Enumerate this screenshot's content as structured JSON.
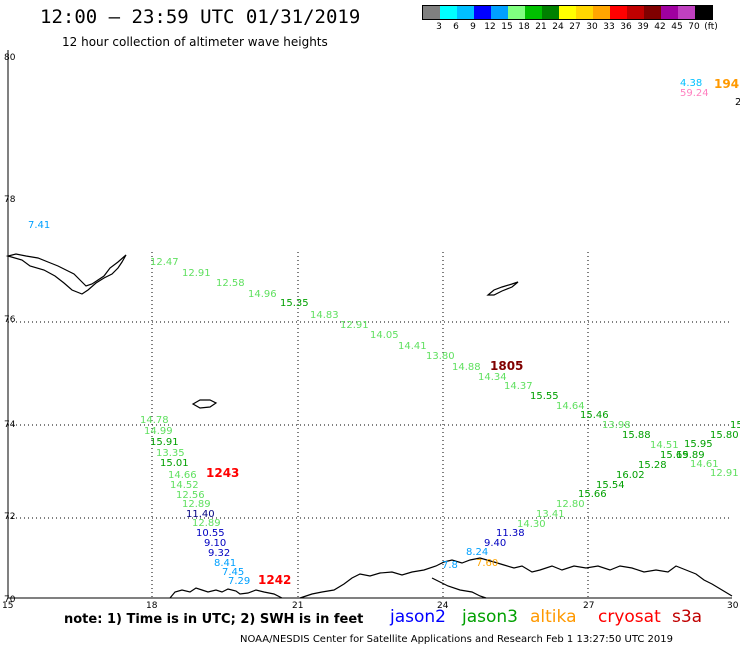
{
  "header": {
    "title": "12:00 – 23:59 UTC 01/31/2019",
    "subtitle": "12 hour collection of altimeter wave heights"
  },
  "color_scale": {
    "colors": [
      "#808080",
      "#00ffff",
      "#00bfff",
      "#0000ff",
      "#00a0ff",
      "#80ff80",
      "#00c000",
      "#008000",
      "#ffff00",
      "#ffd700",
      "#ffa500",
      "#ff0000",
      "#c00000",
      "#800000",
      "#a000a0",
      "#c040c0",
      "#000000"
    ],
    "labels": [
      "3",
      "6",
      "9",
      "12",
      "15",
      "18",
      "21",
      "24",
      "27",
      "30",
      "33",
      "36",
      "39",
      "42",
      "45",
      "70",
      "(ft)"
    ]
  },
  "axes": {
    "lat_labels": [
      "80",
      "78",
      "76",
      "74",
      "72",
      "70"
    ],
    "lon_labels": [
      "15",
      "18",
      "21",
      "24",
      "27",
      "30"
    ]
  },
  "wave_points": [
    {
      "text": "4.38",
      "color": "#00c0ff"
    },
    {
      "text": "59.24",
      "color": "#ff80c0"
    },
    {
      "text": "2",
      "color": "#000000"
    },
    {
      "text": "7.41",
      "color": "#00a0ff"
    },
    {
      "text": "12.47",
      "color": "#60e060"
    },
    {
      "text": "12.91",
      "color": "#60e060"
    },
    {
      "text": "12.58",
      "color": "#60e060"
    },
    {
      "text": "14.96",
      "color": "#60e060"
    },
    {
      "text": "15.35",
      "color": "#00a000"
    },
    {
      "text": "14.83",
      "color": "#60e060"
    },
    {
      "text": "12.91",
      "color": "#60e060"
    },
    {
      "text": "14.05",
      "color": "#60e060"
    },
    {
      "text": "14.41",
      "color": "#60e060"
    },
    {
      "text": "13.80",
      "color": "#60e060"
    },
    {
      "text": "14.88",
      "color": "#60e060"
    },
    {
      "text": "14.34",
      "color": "#60e060"
    },
    {
      "text": "14.37",
      "color": "#60e060"
    },
    {
      "text": "15.55",
      "color": "#00a000"
    },
    {
      "text": "14.64",
      "color": "#60e060"
    },
    {
      "text": "15.46",
      "color": "#00a000"
    },
    {
      "text": "13.98",
      "color": "#60e060"
    },
    {
      "text": "15.88",
      "color": "#00a000"
    },
    {
      "text": "14.51",
      "color": "#60e060"
    },
    {
      "text": "15.95",
      "color": "#00a000"
    },
    {
      "text": "15.69",
      "color": "#00a000"
    },
    {
      "text": "15.89",
      "color": "#00a000"
    },
    {
      "text": "15.28",
      "color": "#00a000"
    },
    {
      "text": "14.61",
      "color": "#60e060"
    },
    {
      "text": "12.91",
      "color": "#60e060"
    },
    {
      "text": "16.02",
      "color": "#00a000"
    },
    {
      "text": "15.54",
      "color": "#00a000"
    },
    {
      "text": "15.66",
      "color": "#00a000"
    },
    {
      "text": "12.80",
      "color": "#60e060"
    },
    {
      "text": "13.41",
      "color": "#60e060"
    },
    {
      "text": "14.30",
      "color": "#60e060"
    },
    {
      "text": "15.80",
      "color": "#00a000"
    },
    {
      "text": "15",
      "color": "#00a000"
    },
    {
      "text": "14.78",
      "color": "#60e060"
    },
    {
      "text": "14.99",
      "color": "#60e060"
    },
    {
      "text": "15.91",
      "color": "#00a000"
    },
    {
      "text": "13.35",
      "color": "#60e060"
    },
    {
      "text": "15.01",
      "color": "#00a000"
    },
    {
      "text": "14.66",
      "color": "#60e060"
    },
    {
      "text": "14.52",
      "color": "#60e060"
    },
    {
      "text": "12.56",
      "color": "#60e060"
    },
    {
      "text": "12.89",
      "color": "#60e060"
    },
    {
      "text": "11.40",
      "color": "#000080"
    },
    {
      "text": "12.89",
      "color": "#60e060"
    },
    {
      "text": "10.55",
      "color": "#0000c0"
    },
    {
      "text": "9.10",
      "color": "#0000c0"
    },
    {
      "text": "9.32",
      "color": "#0000c0"
    },
    {
      "text": "8.41",
      "color": "#00a0ff"
    },
    {
      "text": "7.45",
      "color": "#00a0ff"
    },
    {
      "text": "7.29",
      "color": "#00a0ff"
    },
    {
      "text": "11.38",
      "color": "#0000c0"
    },
    {
      "text": "9.40",
      "color": "#0000c0"
    },
    {
      "text": "8.24",
      "color": "#00a0ff"
    },
    {
      "text": "7.8",
      "color": "#00a0ff"
    },
    {
      "text": "7.60",
      "color": "#ffa500"
    }
  ],
  "time_labels": [
    {
      "text": "194",
      "color": "#ff9900"
    },
    {
      "text": "1805",
      "color": "#800000"
    },
    {
      "text": "1243",
      "color": "#ff0000"
    },
    {
      "text": "1242",
      "color": "#ff0000"
    }
  ],
  "footer": {
    "note": "note: 1) Time is in UTC; 2) SWH is in feet",
    "legend": [
      {
        "label": "jason2",
        "color": "#0000ff"
      },
      {
        "label": "jason3",
        "color": "#00a000"
      },
      {
        "label": "altika",
        "color": "#ff9900"
      },
      {
        "label": "cryosat",
        "color": "#ff0000"
      },
      {
        "label": "s3a",
        "color": "#c00000"
      }
    ],
    "credit": "NOAA/NESDIS Center for Satellite Applications and Research     Feb  1 13:27:50 UTC 2019"
  }
}
